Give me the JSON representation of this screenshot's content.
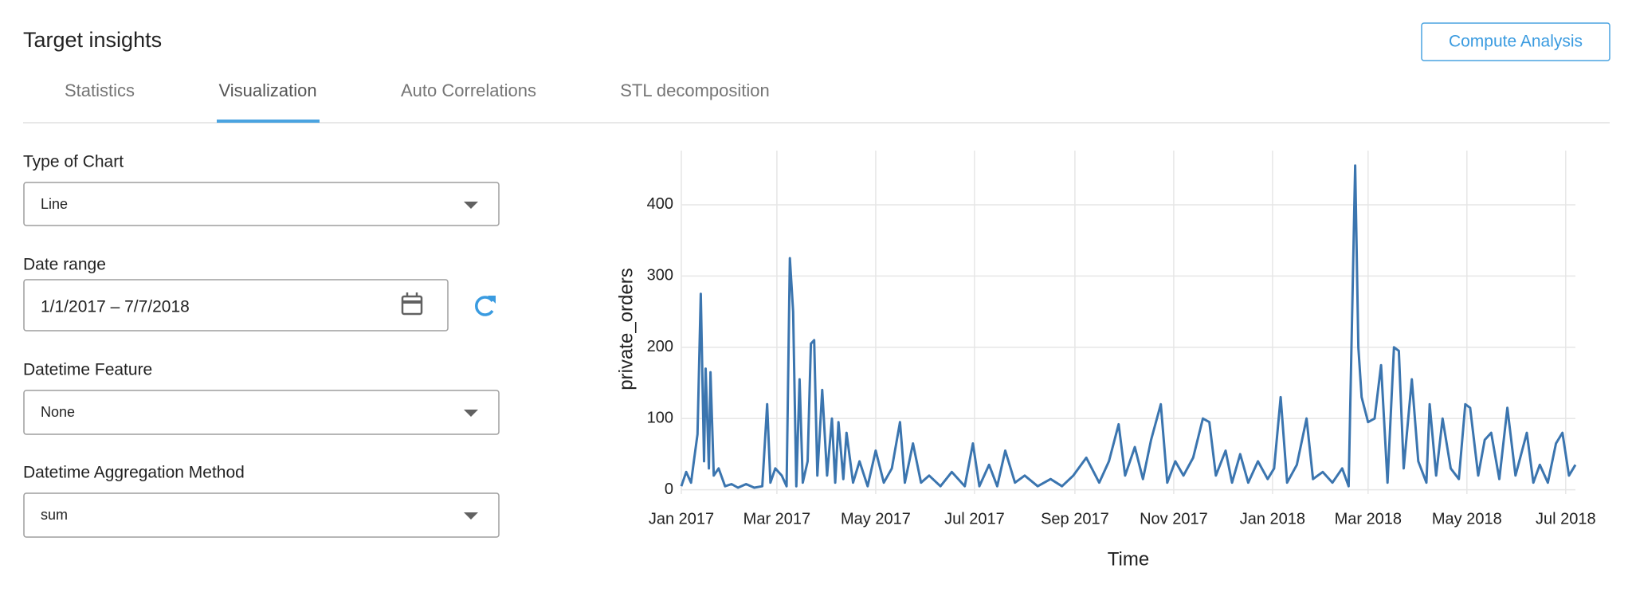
{
  "header": {
    "title": "Target insights",
    "button": "Compute Analysis"
  },
  "tabs": [
    "Statistics",
    "Visualization",
    "Auto Correlations",
    "STL decomposition"
  ],
  "form": {
    "fields": [
      {
        "label": "Type of Chart",
        "value": "Line"
      },
      {
        "label": "Date range",
        "value": "1/1/2017 – 7/7/2018"
      },
      {
        "label": "Datetime Feature",
        "value": "None"
      },
      {
        "label": "Datetime Aggregation Method",
        "value": "sum"
      }
    ]
  },
  "chart_data": {
    "type": "line",
    "x_label": "Time",
    "y_label": "private_orders",
    "x": [
      0,
      3,
      6,
      8,
      10,
      12,
      14,
      15,
      17,
      18,
      20,
      23,
      27,
      31,
      35,
      40,
      45,
      50,
      53,
      55,
      58,
      62,
      65,
      67,
      69,
      71,
      73,
      75,
      78,
      80,
      82,
      84,
      87,
      90,
      93,
      95,
      97,
      100,
      102,
      106,
      110,
      115,
      120,
      125,
      130,
      135,
      138,
      143,
      148,
      153,
      160,
      167,
      175,
      180,
      184,
      190,
      195,
      200,
      206,
      212,
      220,
      228,
      235,
      242,
      250,
      258,
      264,
      270,
      274,
      280,
      285,
      290,
      296,
      300,
      305,
      310,
      316,
      322,
      326,
      330,
      336,
      340,
      345,
      350,
      356,
      362,
      366,
      370,
      374,
      380,
      386,
      390,
      396,
      402,
      408,
      412,
      416,
      418,
      420,
      424,
      428,
      432,
      436,
      440,
      443,
      446,
      451,
      455,
      460,
      462,
      466,
      470,
      475,
      480,
      484,
      487,
      492,
      496,
      500,
      505,
      510,
      515,
      522,
      526,
      530,
      535,
      540,
      544,
      548,
      552
    ],
    "series": [
      {
        "name": "private_orders",
        "color": "#3b75af",
        "values": [
          5,
          25,
          10,
          45,
          78,
          275,
          40,
          170,
          30,
          165,
          20,
          30,
          5,
          8,
          3,
          8,
          3,
          5,
          120,
          10,
          30,
          20,
          5,
          325,
          250,
          5,
          155,
          10,
          40,
          205,
          210,
          20,
          140,
          20,
          100,
          10,
          95,
          15,
          80,
          10,
          40,
          5,
          55,
          10,
          30,
          95,
          10,
          65,
          10,
          20,
          5,
          25,
          5,
          65,
          5,
          35,
          5,
          55,
          10,
          20,
          5,
          15,
          5,
          20,
          45,
          10,
          40,
          92,
          20,
          60,
          15,
          70,
          120,
          10,
          40,
          20,
          45,
          100,
          95,
          20,
          55,
          10,
          50,
          10,
          40,
          15,
          30,
          130,
          10,
          35,
          100,
          15,
          25,
          10,
          30,
          5,
          455,
          200,
          130,
          95,
          100,
          175,
          10,
          200,
          195,
          30,
          155,
          40,
          10,
          120,
          20,
          100,
          30,
          15,
          120,
          115,
          20,
          70,
          80,
          15,
          115,
          20,
          80,
          10,
          35,
          10,
          65,
          80,
          20,
          35
        ]
      }
    ],
    "xlim": [
      0,
      552
    ],
    "xticks": [
      {
        "value": 0,
        "label": "Jan 2017"
      },
      {
        "value": 59,
        "label": "Mar 2017"
      },
      {
        "value": 120,
        "label": "May 2017"
      },
      {
        "value": 181,
        "label": "Jul 2017"
      },
      {
        "value": 243,
        "label": "Sep 2017"
      },
      {
        "value": 304,
        "label": "Nov 2017"
      },
      {
        "value": 365,
        "label": "Jan 2018"
      },
      {
        "value": 424,
        "label": "Mar 2018"
      },
      {
        "value": 485,
        "label": "May 2018"
      },
      {
        "value": 546,
        "label": "Jul 2018"
      }
    ],
    "ylim": [
      -6,
      476
    ],
    "yticks": [
      0,
      100,
      200,
      300,
      400
    ],
    "grid": true
  }
}
